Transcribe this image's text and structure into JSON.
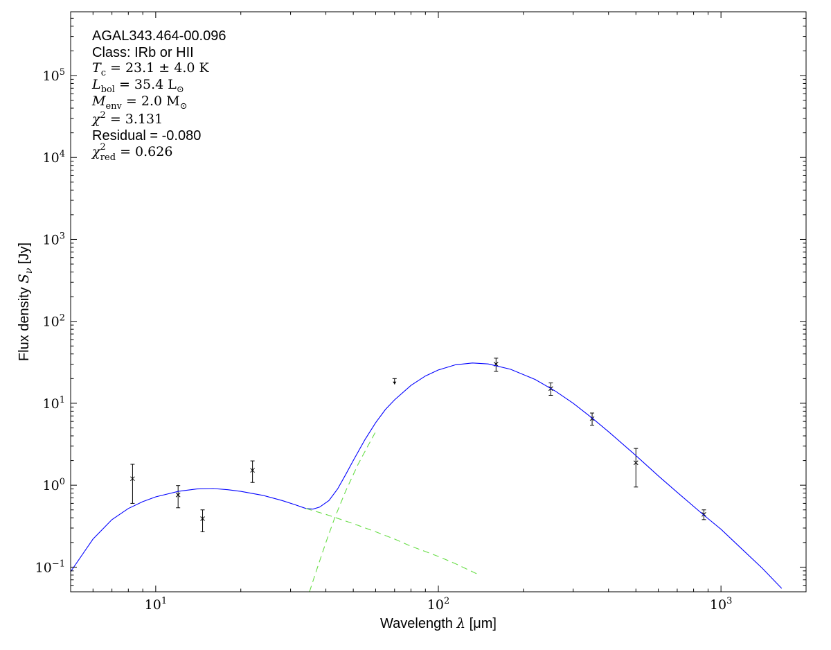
{
  "chart_data": {
    "type": "scatter",
    "title": "",
    "annotations": {
      "source_name": "AGAL343.464-00.096",
      "class_line": "Class: IRb or HII",
      "tc_label": "T",
      "tc_sub": "c",
      "tc_value": " = 23.1 ± 4.0 K",
      "lbol_label": "L",
      "lbol_sub": "bol",
      "lbol_value": " = 35.4 L",
      "lbol_sun_sub": "⊙",
      "menv_label": "M",
      "menv_sub": "env",
      "menv_value": " = 2.0 M",
      "menv_sun_sub": "⊙",
      "chi2_label": "χ",
      "chi2_sup": "2",
      "chi2_value": " = 3.131",
      "residual_line": "Residual = -0.080",
      "chi2red_label": "χ",
      "chi2red_sup": "2",
      "chi2red_sub": "red",
      "chi2red_value": " = 0.626"
    },
    "xlabel_prefix": "Wavelength ",
    "xlabel_symbol": "λ",
    "xlabel_unit": " [μm]",
    "ylabel_prefix": "Flux density ",
    "ylabel_symbol": "S",
    "ylabel_sub": "ν",
    "ylabel_unit": " [Jy]",
    "x_scale": "log",
    "y_scale": "log",
    "xlim": [
      5,
      2000
    ],
    "ylim": [
      0.05,
      600000
    ],
    "x_tick_labels": [
      {
        "value": 10,
        "base": "10",
        "exp": "1"
      },
      {
        "value": 100,
        "base": "10",
        "exp": "2"
      },
      {
        "value": 1000,
        "base": "10",
        "exp": "3"
      }
    ],
    "y_tick_labels": [
      {
        "value": 0.1,
        "base": "10",
        "exp": "−1"
      },
      {
        "value": 1,
        "base": "10",
        "exp": "0"
      },
      {
        "value": 10,
        "base": "10",
        "exp": "1"
      },
      {
        "value": 100,
        "base": "10",
        "exp": "2"
      },
      {
        "value": 1000,
        "base": "10",
        "exp": "3"
      },
      {
        "value": 10000,
        "base": "10",
        "exp": "4"
      },
      {
        "value": 100000,
        "base": "10",
        "exp": "5"
      }
    ],
    "grid": false,
    "colors": {
      "total_fit": "#0000ff",
      "components": "#66dd44",
      "points": "#000000"
    },
    "series": [
      {
        "kind": "points_with_errorbars",
        "points": [
          {
            "x": 8.28,
            "y": 1.2,
            "ylo": 0.6,
            "yhi": 1.8
          },
          {
            "x": 12.0,
            "y": 0.76,
            "ylo": 0.53,
            "yhi": 0.99
          },
          {
            "x": 14.65,
            "y": 0.39,
            "ylo": 0.27,
            "yhi": 0.5
          },
          {
            "x": 22.0,
            "y": 1.52,
            "ylo": 1.08,
            "yhi": 1.98
          },
          {
            "x": 160,
            "y": 30,
            "ylo": 24.5,
            "yhi": 35.5
          },
          {
            "x": 250,
            "y": 15.1,
            "ylo": 12.5,
            "yhi": 17.7
          },
          {
            "x": 350,
            "y": 6.5,
            "ylo": 5.4,
            "yhi": 7.6
          },
          {
            "x": 500,
            "y": 1.88,
            "ylo": 0.95,
            "yhi": 2.81
          },
          {
            "x": 870,
            "y": 0.44,
            "ylo": 0.38,
            "yhi": 0.5
          }
        ]
      },
      {
        "kind": "upper_limit",
        "points": [
          {
            "x": 70,
            "y": 20,
            "ylo": 17
          }
        ]
      },
      {
        "kind": "line",
        "style": "solid",
        "points": [
          [
            5.0,
            0.088
          ],
          [
            6.0,
            0.22
          ],
          [
            7.0,
            0.38
          ],
          [
            8.0,
            0.52
          ],
          [
            9.0,
            0.63
          ],
          [
            10.0,
            0.72
          ],
          [
            12.0,
            0.84
          ],
          [
            14.0,
            0.9
          ],
          [
            16.0,
            0.91
          ],
          [
            18.0,
            0.88
          ],
          [
            20.0,
            0.84
          ],
          [
            24.0,
            0.75
          ],
          [
            28.0,
            0.65
          ],
          [
            31.0,
            0.58
          ],
          [
            34.0,
            0.52
          ],
          [
            36.0,
            0.51
          ],
          [
            38.0,
            0.54
          ],
          [
            41.0,
            0.65
          ],
          [
            44.0,
            0.9
          ],
          [
            47.0,
            1.35
          ],
          [
            50.0,
            2.0
          ],
          [
            55.0,
            3.6
          ],
          [
            60.0,
            5.8
          ],
          [
            65.0,
            8.4
          ],
          [
            70.0,
            11.0
          ],
          [
            80.0,
            16.5
          ],
          [
            90.0,
            21.5
          ],
          [
            100.0,
            25.5
          ],
          [
            115.0,
            29.5
          ],
          [
            132.0,
            31.0
          ],
          [
            150.0,
            30.2
          ],
          [
            180.0,
            26.0
          ],
          [
            220.0,
            19.5
          ],
          [
            260.0,
            14.0
          ],
          [
            300.0,
            10.0
          ],
          [
            350.0,
            6.6
          ],
          [
            400.0,
            4.5
          ],
          [
            500.0,
            2.3
          ],
          [
            600.0,
            1.3
          ],
          [
            700.0,
            0.82
          ],
          [
            870.0,
            0.43
          ],
          [
            1000.0,
            0.29
          ],
          [
            1200.0,
            0.16
          ],
          [
            1400.0,
            0.097
          ],
          [
            1640.0,
            0.055
          ]
        ]
      },
      {
        "kind": "line",
        "style": "dashed",
        "points": [
          [
            34.0,
            0.52
          ],
          [
            40.0,
            0.44
          ],
          [
            50.0,
            0.34
          ],
          [
            60.0,
            0.27
          ],
          [
            70.0,
            0.22
          ],
          [
            80.0,
            0.18
          ],
          [
            90.0,
            0.155
          ],
          [
            100.0,
            0.135
          ],
          [
            115.0,
            0.11
          ],
          [
            130.0,
            0.09
          ],
          [
            140.0,
            0.08
          ]
        ]
      },
      {
        "kind": "line",
        "style": "dashed",
        "points": [
          [
            35.0,
            0.05
          ],
          [
            37.0,
            0.09
          ],
          [
            40.0,
            0.2
          ],
          [
            43.0,
            0.4
          ],
          [
            47.0,
            0.85
          ],
          [
            52.0,
            1.8
          ],
          [
            56.0,
            2.9
          ],
          [
            60.0,
            4.5
          ]
        ]
      }
    ]
  }
}
